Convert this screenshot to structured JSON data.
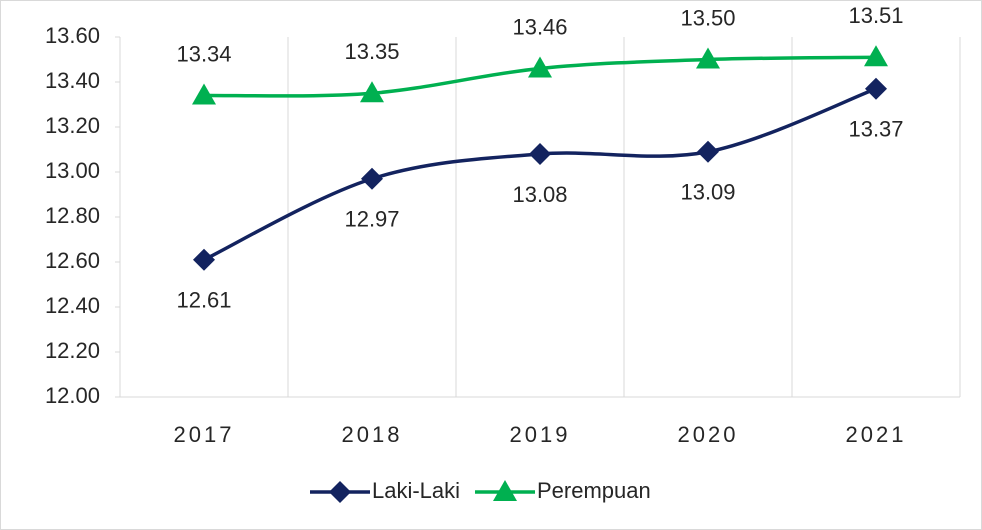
{
  "chart_data": {
    "type": "line",
    "categories": [
      "2017",
      "2018",
      "2019",
      "2020",
      "2021"
    ],
    "series": [
      {
        "name": "Laki-Laki",
        "color": "#13235f",
        "marker": "diamond",
        "values": [
          12.61,
          12.97,
          13.08,
          13.09,
          13.37
        ],
        "value_labels": [
          "12.61",
          "12.97",
          "13.08",
          "13.09",
          "13.37"
        ]
      },
      {
        "name": "Perempuan",
        "color": "#00b050",
        "marker": "triangle",
        "values": [
          13.34,
          13.35,
          13.46,
          13.5,
          13.51
        ],
        "value_labels": [
          "13.34",
          "13.35",
          "13.46",
          "13.50",
          "13.51"
        ]
      }
    ],
    "ylim": [
      12,
      13.6
    ],
    "yticks": [
      {
        "value": 12,
        "label": "12.00"
      },
      {
        "value": 12.2,
        "label": "12.20"
      },
      {
        "value": 12.4,
        "label": "12.40"
      },
      {
        "value": 12.6,
        "label": "12.60"
      },
      {
        "value": 12.8,
        "label": "12.80"
      },
      {
        "value": 13,
        "label": "13.00"
      },
      {
        "value": 13.2,
        "label": "13.20"
      },
      {
        "value": 13.4,
        "label": "13.40"
      },
      {
        "value": 13.6,
        "label": "13.60"
      }
    ],
    "smooth": true,
    "legend": "bottom"
  }
}
